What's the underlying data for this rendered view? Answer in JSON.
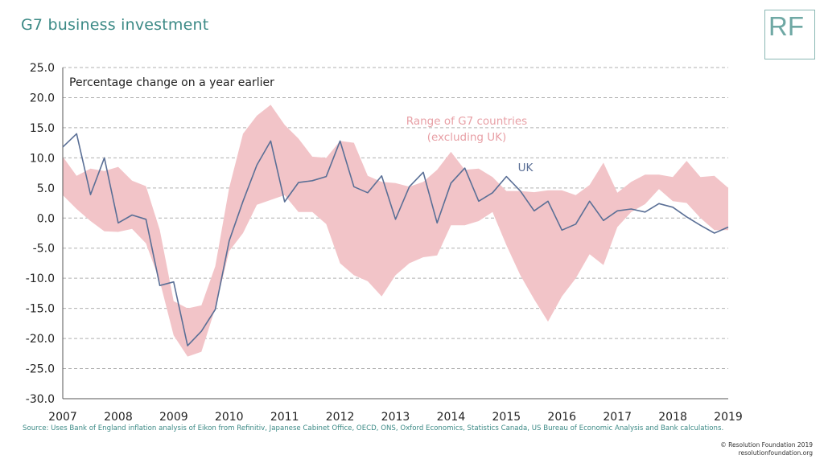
{
  "header": {
    "title": "G7 business investment",
    "logo": "RF"
  },
  "chart_data": {
    "type": "line",
    "title": "",
    "subtitle": "Percentage change on a year earlier",
    "xlabel": "",
    "ylabel": "",
    "ylim": [
      -30,
      25
    ],
    "yticks": [
      "25.0",
      "20.0",
      "15.0",
      "10.0",
      "5.0",
      "0.0",
      "-5.0",
      "-10.0",
      "-15.0",
      "-20.0",
      "-25.0",
      "-30.0"
    ],
    "xlim": [
      2007,
      2019
    ],
    "xticks": [
      "2007",
      "2008",
      "2009",
      "2010",
      "2011",
      "2012",
      "2013",
      "2014",
      "2015",
      "2016",
      "2017",
      "2018",
      "2019"
    ],
    "grid": true,
    "colors": {
      "uk": "#5a6f96",
      "range": "#f2c4c8",
      "grid": "#b0b0b0"
    },
    "series": [
      {
        "name": "UK",
        "x": [
          2007.0,
          2007.25,
          2007.5,
          2007.75,
          2008.0,
          2008.25,
          2008.5,
          2008.75,
          2009.0,
          2009.25,
          2009.5,
          2009.75,
          2010.0,
          2010.25,
          2010.5,
          2010.75,
          2011.0,
          2011.25,
          2011.5,
          2011.75,
          2012.0,
          2012.25,
          2012.5,
          2012.75,
          2013.0,
          2013.25,
          2013.5,
          2013.75,
          2014.0,
          2014.25,
          2014.5,
          2014.75,
          2015.0,
          2015.25,
          2015.5,
          2015.75,
          2016.0,
          2016.25,
          2016.5,
          2016.75,
          2017.0,
          2017.25,
          2017.5,
          2017.75,
          2018.0,
          2018.25,
          2018.5,
          2018.75,
          2019.0
        ],
        "values": [
          11.8,
          14.0,
          3.9,
          10.0,
          -0.8,
          0.5,
          -0.2,
          -11.2,
          -10.6,
          -21.2,
          -18.8,
          -15.2,
          -3.8,
          2.8,
          8.8,
          12.8,
          2.7,
          5.9,
          6.2,
          6.9,
          12.8,
          5.2,
          4.2,
          7.0,
          -0.2,
          5.2,
          7.6,
          -0.8,
          5.8,
          8.3,
          2.8,
          4.2,
          6.9,
          4.5,
          1.2,
          2.8,
          -2.0,
          -1.0,
          2.8,
          -0.4,
          1.2,
          1.5,
          1.0,
          2.4,
          1.8,
          0.2,
          -1.2,
          -2.5,
          -1.5
        ]
      },
      {
        "name": "Range of G7 countries (excluding UK)",
        "type": "area",
        "x": [
          2007.0,
          2007.25,
          2007.5,
          2007.75,
          2008.0,
          2008.25,
          2008.5,
          2008.75,
          2009.0,
          2009.25,
          2009.5,
          2009.75,
          2010.0,
          2010.25,
          2010.5,
          2010.75,
          2011.0,
          2011.25,
          2011.5,
          2011.75,
          2012.0,
          2012.25,
          2012.5,
          2012.75,
          2013.0,
          2013.25,
          2013.5,
          2013.75,
          2014.0,
          2014.25,
          2014.5,
          2014.75,
          2015.0,
          2015.25,
          2015.5,
          2015.75,
          2016.0,
          2016.25,
          2016.5,
          2016.75,
          2017.0,
          2017.25,
          2017.5,
          2017.75,
          2018.0,
          2018.25,
          2018.5,
          2018.75,
          2019.0
        ],
        "upper": [
          10.2,
          7.0,
          8.2,
          7.8,
          8.5,
          6.2,
          5.3,
          -2.0,
          -13.8,
          -15.0,
          -14.5,
          -8.0,
          5.0,
          14.0,
          17.0,
          18.8,
          15.5,
          13.2,
          10.2,
          10.0,
          12.8,
          12.5,
          7.0,
          6.0,
          5.8,
          5.2,
          6.0,
          8.0,
          11.0,
          8.0,
          8.2,
          6.8,
          4.5,
          4.5,
          4.3,
          4.6,
          4.6,
          3.8,
          5.5,
          9.2,
          4.2,
          6.0,
          7.2,
          7.2,
          6.8,
          9.5,
          6.8,
          7.0,
          5.0
        ],
        "lower": [
          3.8,
          1.5,
          -0.5,
          -2.2,
          -2.3,
          -1.8,
          -4.2,
          -10.5,
          -19.5,
          -23.0,
          -22.2,
          -15.0,
          -5.5,
          -2.5,
          2.2,
          3.0,
          3.8,
          1.0,
          1.0,
          -1.0,
          -7.5,
          -9.5,
          -10.5,
          -13.0,
          -9.5,
          -7.5,
          -6.5,
          -6.2,
          -1.2,
          -1.2,
          -0.5,
          1.0,
          -4.5,
          -9.5,
          -13.5,
          -17.2,
          -13.0,
          -10.0,
          -6.0,
          -7.8,
          -1.5,
          1.0,
          2.3,
          4.8,
          2.8,
          2.5,
          0.0,
          -2.0,
          -2.0
        ]
      }
    ],
    "annotations": {
      "range_line1": "Range of G7 countries",
      "range_line2": "(excluding UK)",
      "uk_label": "UK"
    }
  },
  "footer": {
    "source": "Source: Uses Bank of England inflation analysis of Eikon from Refinitiv, Japanese Cabinet Office, OECD, ONS, Oxford Economics, Statistics Canada, US Bureau of Economic Analysis and Bank calculations.",
    "copyright_line1": "© Resolution Foundation 2019",
    "copyright_line2": "resolutionfoundation.org"
  }
}
